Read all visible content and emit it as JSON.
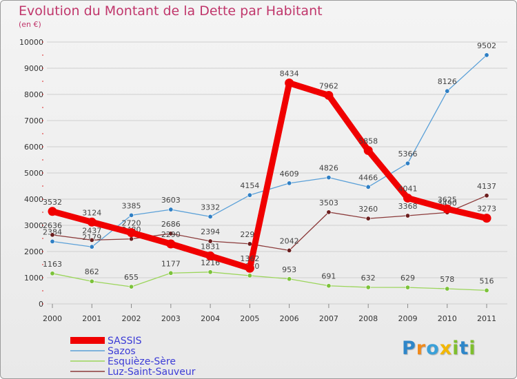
{
  "title": "Evolution du Montant de la Dette par Habitant",
  "subtitle": "(en €)",
  "colors": {
    "title": "#c0366b",
    "legend_text": "#3b3bd6",
    "grid": "#cfcfcf",
    "axis_text": "#333333",
    "value_text": "#444444"
  },
  "logo": {
    "text": "Proxiti",
    "letters": [
      "P",
      "r",
      "o",
      "x",
      "i",
      "t",
      "i"
    ],
    "letter_colors": [
      "#2e86c9",
      "#f08a1c",
      "#3aa0d8",
      "#f2b705",
      "#7fbf2e",
      "#2e86c9",
      "#7fbf2e"
    ]
  },
  "chart_data": {
    "type": "line",
    "title": "Evolution du Montant de la Dette par Habitant",
    "subtitle": "(en €)",
    "xlabel": "",
    "ylabel": "",
    "x": [
      "2000",
      "2001",
      "2002",
      "2003",
      "2004",
      "2005",
      "2006",
      "2007",
      "2008",
      "2009",
      "2010",
      "2011"
    ],
    "ylim": [
      0,
      10000
    ],
    "yticks": [
      0,
      1000,
      2000,
      3000,
      4000,
      5000,
      6000,
      7000,
      8000,
      9000,
      10000
    ],
    "grid": "horizontal",
    "legend_position": "bottom-left",
    "series": [
      {
        "name": "Sazos",
        "color": "#5aa0d8",
        "marker_color": "#2f7fc4",
        "thick": false,
        "values": [
          2384,
          2179,
          3385,
          3603,
          3332,
          4154,
          4609,
          4826,
          4466,
          5366,
          8126,
          9502
        ]
      },
      {
        "name": "Esquièze-Sère",
        "color": "#9bd55a",
        "marker_color": "#7cc23a",
        "thick": false,
        "values": [
          1163,
          862,
          655,
          1177,
          1216,
          1080,
          953,
          691,
          632,
          629,
          578,
          516
        ]
      },
      {
        "name": "Luz-Saint-Sauveur",
        "color": "#8b3a3a",
        "marker_color": "#6b1e1e",
        "thick": false,
        "values": [
          2636,
          2437,
          2480,
          2686,
          2394,
          2292,
          2042,
          3503,
          3260,
          3368,
          3490,
          4137
        ]
      },
      {
        "name": "SASSIS",
        "color": "#f00000",
        "marker_color": "#f00000",
        "thick": true,
        "values": [
          3532,
          3124,
          2720,
          2290,
          1831,
          1362,
          8434,
          7962,
          5858,
          4041,
          3625,
          3273
        ]
      }
    ],
    "legend_order": [
      "SASSIS",
      "Sazos",
      "Esquièze-Sère",
      "Luz-Saint-Sauveur"
    ]
  }
}
